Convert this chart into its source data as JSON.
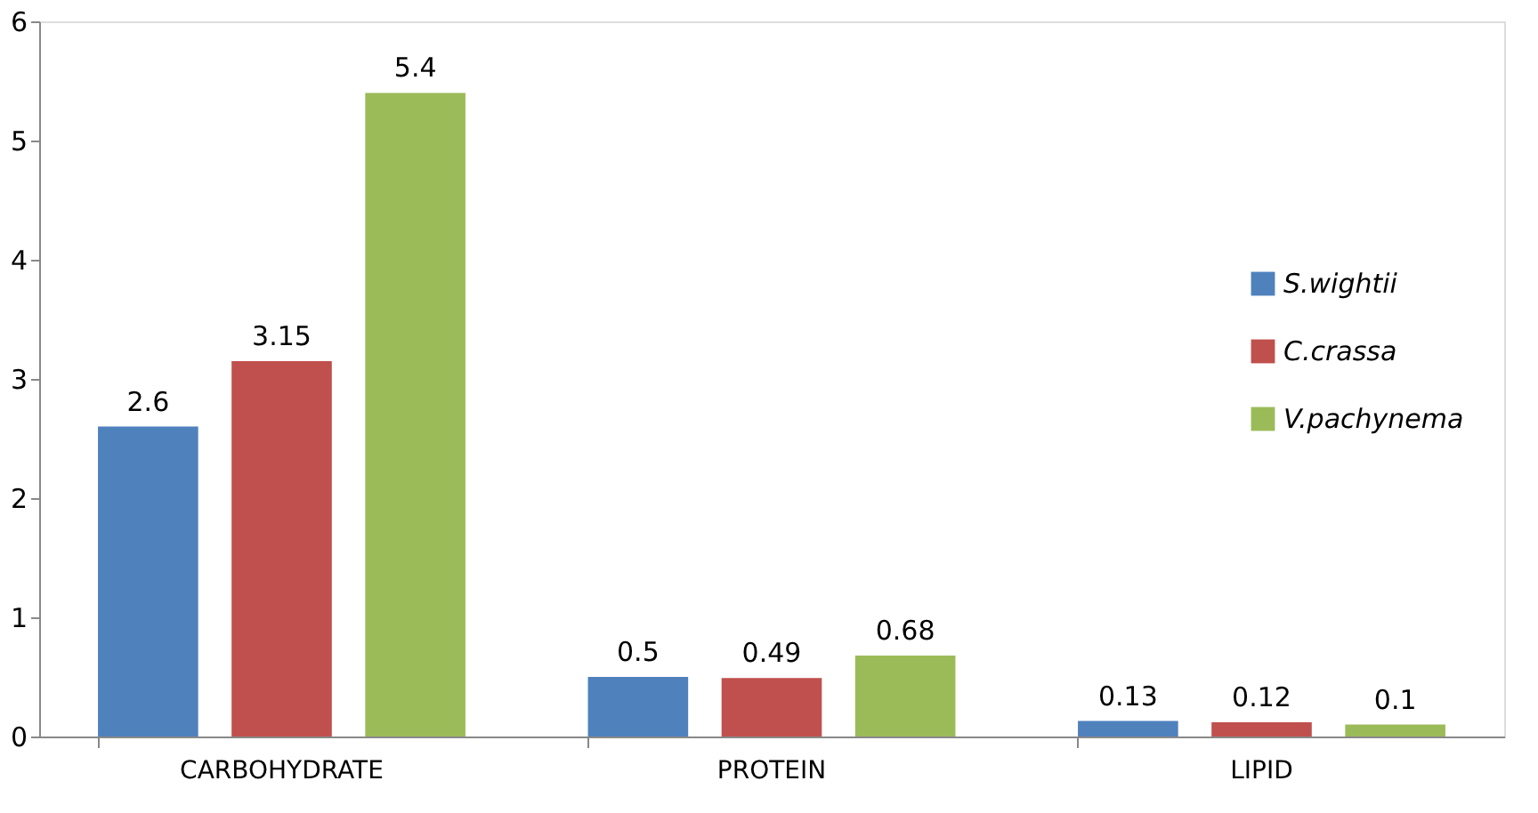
{
  "chart_data": {
    "type": "bar",
    "categories": [
      "CARBOHYDRATE",
      "PROTEIN",
      "LIPID"
    ],
    "series": [
      {
        "name": "S.wightii",
        "color": "#4f81bd",
        "values": [
          2.6,
          0.5,
          0.13
        ]
      },
      {
        "name": "C.crassa",
        "color": "#c0504d",
        "values": [
          3.15,
          0.49,
          0.12
        ]
      },
      {
        "name": "V.pachynema",
        "color": "#9bbb59",
        "values": [
          5.4,
          0.68,
          0.1
        ]
      }
    ],
    "ylim": [
      0,
      6
    ],
    "yticks": [
      0,
      1,
      2,
      3,
      4,
      5,
      6
    ],
    "grid": false,
    "legend": "right",
    "data_labels": true
  }
}
